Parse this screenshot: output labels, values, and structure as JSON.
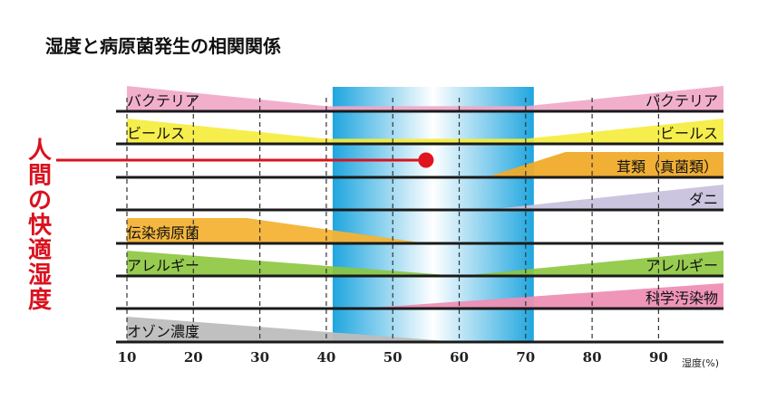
{
  "chart_data": {
    "type": "area",
    "title": "湿度と病原菌発生の相関関係",
    "vertical_label": [
      "人",
      "間",
      "の",
      "快",
      "適",
      "湿",
      "度"
    ],
    "x_ticks": [
      10,
      20,
      30,
      40,
      50,
      60,
      70,
      80,
      90
    ],
    "xlabel": "湿度(%)",
    "xlim": [
      10,
      100
    ],
    "optimal_range": [
      40,
      70
    ],
    "human_comfort_line": {
      "from": 10,
      "to": 55
    },
    "series": [
      {
        "name": "バクテリア",
        "color": "#f1a6c6",
        "points": [
          [
            10,
            1.0
          ],
          [
            40,
            0.2
          ],
          [
            70,
            0.2
          ],
          [
            100,
            1.0
          ]
        ],
        "label_left": "バクテリア",
        "label_right": "バクテリア"
      },
      {
        "name": "ビールス",
        "color": "#f5ec38",
        "points": [
          [
            10,
            1.0
          ],
          [
            40,
            0.2
          ],
          [
            70,
            0.2
          ],
          [
            100,
            1.0
          ]
        ],
        "label_left": "ビールス",
        "label_right": "ビールス"
      },
      {
        "name": "茸類（真菌類）",
        "color": "#f0ab2a",
        "points": [
          [
            64,
            0.0
          ],
          [
            76,
            1.0
          ],
          [
            100,
            1.0
          ]
        ],
        "label_right": "茸類（真菌類）"
      },
      {
        "name": "ダニ",
        "color": "#c8c2de",
        "points": [
          [
            64,
            0.0
          ],
          [
            100,
            1.0
          ]
        ],
        "label_right": "ダニ"
      },
      {
        "name": "伝染病原菌",
        "color": "#f4b335",
        "points": [
          [
            10,
            1.0
          ],
          [
            28,
            1.0
          ],
          [
            55,
            0.0
          ]
        ],
        "label_left": "伝染病原菌"
      },
      {
        "name": "アレルギー",
        "color": "#8cc63e",
        "points": [
          [
            10,
            1.0
          ],
          [
            60,
            0.0
          ],
          [
            100,
            1.0
          ]
        ],
        "label_left": "アレルギー",
        "label_right": "アレルギー"
      },
      {
        "name": "科学汚染物",
        "color": "#ee8fb4",
        "points": [
          [
            45,
            0.0
          ],
          [
            100,
            1.0
          ]
        ],
        "label_right": "科学汚染物"
      },
      {
        "name": "オゾン濃度",
        "color": "#bdbdbd",
        "points": [
          [
            10,
            1.0
          ],
          [
            60,
            0.0
          ]
        ],
        "label_left": "オゾン濃度"
      }
    ]
  }
}
